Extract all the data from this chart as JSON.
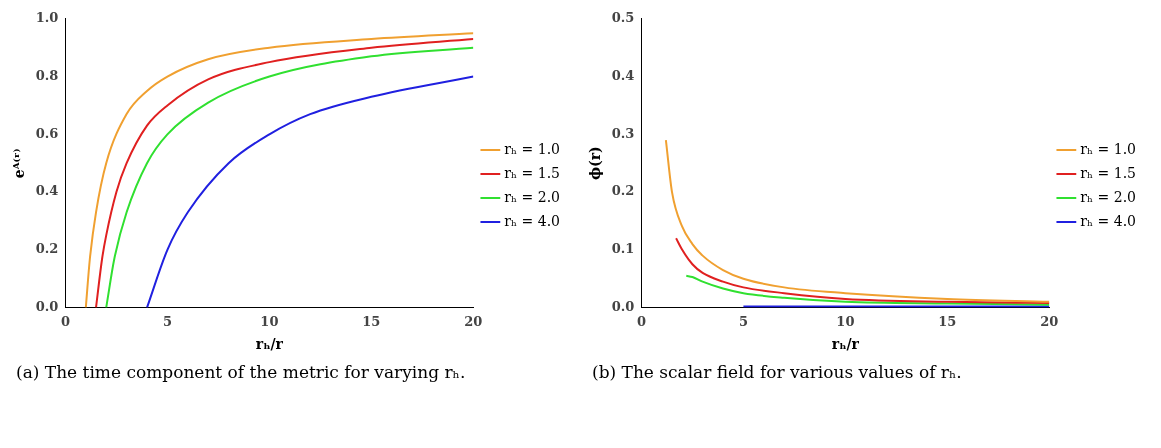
{
  "chart_data": [
    {
      "type": "line",
      "ylabel": "eᴬ⁽ʳ⁾",
      "xlabel": "rₕ/r",
      "xlim": [
        0,
        20
      ],
      "xticks": [
        0,
        5,
        10,
        15,
        20
      ],
      "ylim": [
        0,
        1
      ],
      "yticks": [
        {
          "value": 0,
          "label": "0.0"
        },
        {
          "value": 0.2,
          "label": "0.2"
        },
        {
          "value": 0.4,
          "label": "0.4"
        },
        {
          "value": 0.6,
          "label": "0.6"
        },
        {
          "value": 0.8,
          "label": "0.8"
        },
        {
          "value": 1,
          "label": "1.0"
        }
      ],
      "legend": "right",
      "annotations": [
        "(a) The time component of the metric for varying rₕ."
      ],
      "series": [
        {
          "name": "rₕ = 1.0",
          "color": "#f0a030",
          "x": [
            1,
            1.2,
            1.5,
            2,
            3,
            4,
            5,
            7,
            10,
            15,
            20
          ],
          "values": [
            0,
            0.17,
            0.33,
            0.5,
            0.67,
            0.75,
            0.8,
            0.86,
            0.9,
            0.93,
            0.95
          ]
        },
        {
          "name": "rₕ = 1.5",
          "color": "#e02020",
          "x": [
            1.5,
            1.8,
            2,
            2.5,
            3,
            4,
            5,
            7,
            10,
            15,
            20
          ],
          "values": [
            0,
            0.17,
            0.25,
            0.4,
            0.5,
            0.63,
            0.7,
            0.79,
            0.85,
            0.9,
            0.93
          ]
        },
        {
          "name": "rₕ = 2.0",
          "color": "#30e030",
          "x": [
            2,
            2.4,
            3,
            4,
            5,
            7,
            10,
            15,
            20
          ],
          "values": [
            0,
            0.17,
            0.33,
            0.5,
            0.6,
            0.71,
            0.8,
            0.87,
            0.9
          ]
        },
        {
          "name": "rₕ = 4.0",
          "color": "#2020e0",
          "x": [
            4,
            5,
            6,
            8,
            10,
            12,
            15,
            20
          ],
          "values": [
            0,
            0.2,
            0.33,
            0.5,
            0.6,
            0.67,
            0.73,
            0.8
          ]
        }
      ]
    },
    {
      "type": "line",
      "ylabel": "ϕ(r)",
      "xlabel": "rₕ/r",
      "xlim": [
        0,
        20
      ],
      "xticks": [
        0,
        5,
        10,
        15,
        20
      ],
      "ylim": [
        0,
        0.5
      ],
      "yticks": [
        {
          "value": 0,
          "label": "0.0"
        },
        {
          "value": 0.1,
          "label": "0.1"
        },
        {
          "value": 0.2,
          "label": "0.2"
        },
        {
          "value": 0.3,
          "label": "0.3"
        },
        {
          "value": 0.4,
          "label": "0.4"
        },
        {
          "value": 0.5,
          "label": "0.5"
        }
      ],
      "legend": "right",
      "annotations": [
        "(b) The scalar field for various values of rₕ."
      ],
      "series": [
        {
          "name": "rₕ = 1.0",
          "color": "#f0a030",
          "x": [
            1.2,
            1.5,
            2,
            2.5,
            3,
            4,
            5,
            7,
            10,
            15,
            20
          ],
          "values": [
            0.29,
            0.2,
            0.14,
            0.11,
            0.09,
            0.065,
            0.05,
            0.035,
            0.025,
            0.015,
            0.01
          ]
        },
        {
          "name": "rₕ = 1.5",
          "color": "#e02020",
          "x": [
            1.7,
            2,
            2.5,
            3,
            4,
            5,
            7,
            10,
            15,
            20
          ],
          "values": [
            0.12,
            0.1,
            0.075,
            0.06,
            0.045,
            0.035,
            0.025,
            0.015,
            0.01,
            0.008
          ]
        },
        {
          "name": "rₕ = 2.0",
          "color": "#30e030",
          "x": [
            2.2,
            2.5,
            3,
            4,
            5,
            7,
            10,
            15,
            20
          ],
          "values": [
            0.055,
            0.053,
            0.045,
            0.033,
            0.025,
            0.017,
            0.01,
            0.007,
            0.005
          ]
        },
        {
          "name": "rₕ = 4.0",
          "color": "#2020e0",
          "x": [
            5,
            10,
            15,
            20
          ],
          "values": [
            0.002,
            0.002,
            0.002,
            0.002
          ]
        }
      ]
    }
  ]
}
